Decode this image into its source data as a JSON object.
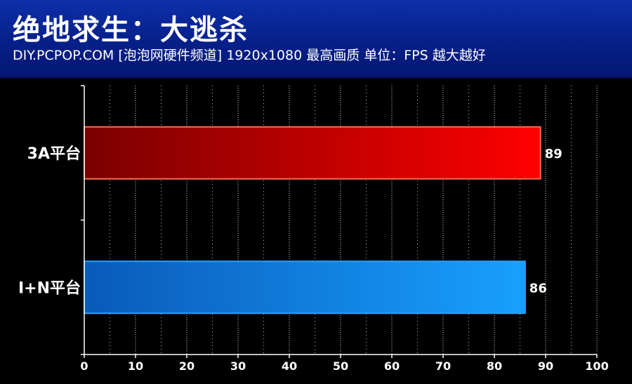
{
  "header": {
    "title": "绝地求生：大逃杀",
    "subtitle": "DIY.PCPOP.COM [泡泡网硬件频道] 1920x1080 最高画质 单位：FPS  越大越好"
  },
  "chart_data": {
    "type": "bar",
    "orientation": "horizontal",
    "title": "绝地求生：大逃杀",
    "subtitle": "DIY.PCPOP.COM [泡泡网硬件频道] 1920x1080 最高画质 单位：FPS  越大越好",
    "categories": [
      "3A平台",
      "I+N平台"
    ],
    "values": [
      89,
      86
    ],
    "xlim": [
      0,
      100
    ],
    "xticks": [
      0,
      10,
      20,
      30,
      40,
      50,
      60,
      70,
      80,
      90,
      100
    ],
    "grid": true,
    "colors": [
      "#e00000",
      "#1a8fe8"
    ]
  }
}
